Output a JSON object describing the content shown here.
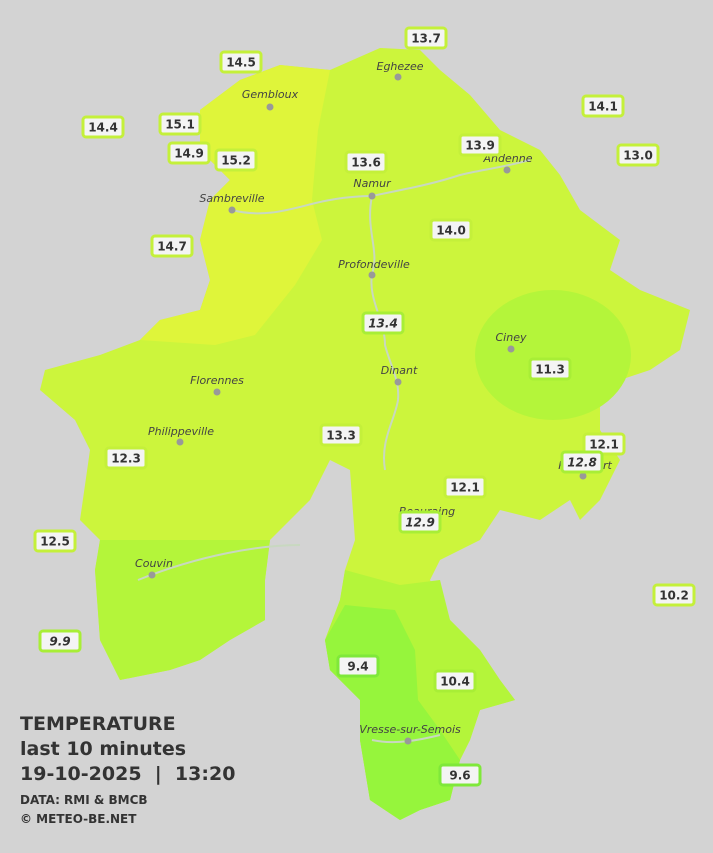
{
  "legend": {
    "title": "TEMPERATURE",
    "period": "last 10 minutes",
    "date": "19-10-2025  |  13:20",
    "source": "DATA: RMI & BMCB",
    "copyright": "© METEO-BE.NET"
  },
  "cities": [
    "Gembloux",
    "Eghezee",
    "Andenne",
    "Namur",
    "Sambreville",
    "Profondeville",
    "Ciney",
    "Dinant",
    "Florennes",
    "Philippeville",
    "Rochefort",
    "Beauraing",
    "Couvin",
    "Vresse-sur-Semois"
  ],
  "stations": [
    "13.7",
    "14.5",
    "14.1",
    "14.4",
    "15.1",
    "14.9",
    "15.2",
    "13.6",
    "13.9",
    "13.0",
    "14.7",
    "14.0",
    "13.4",
    "11.3",
    "13.3",
    "12.1",
    "12.8",
    "12.3",
    "12.1",
    "12.9",
    "12.5",
    "10.2",
    "9.9",
    "9.4",
    "10.4",
    "9.6"
  ]
}
